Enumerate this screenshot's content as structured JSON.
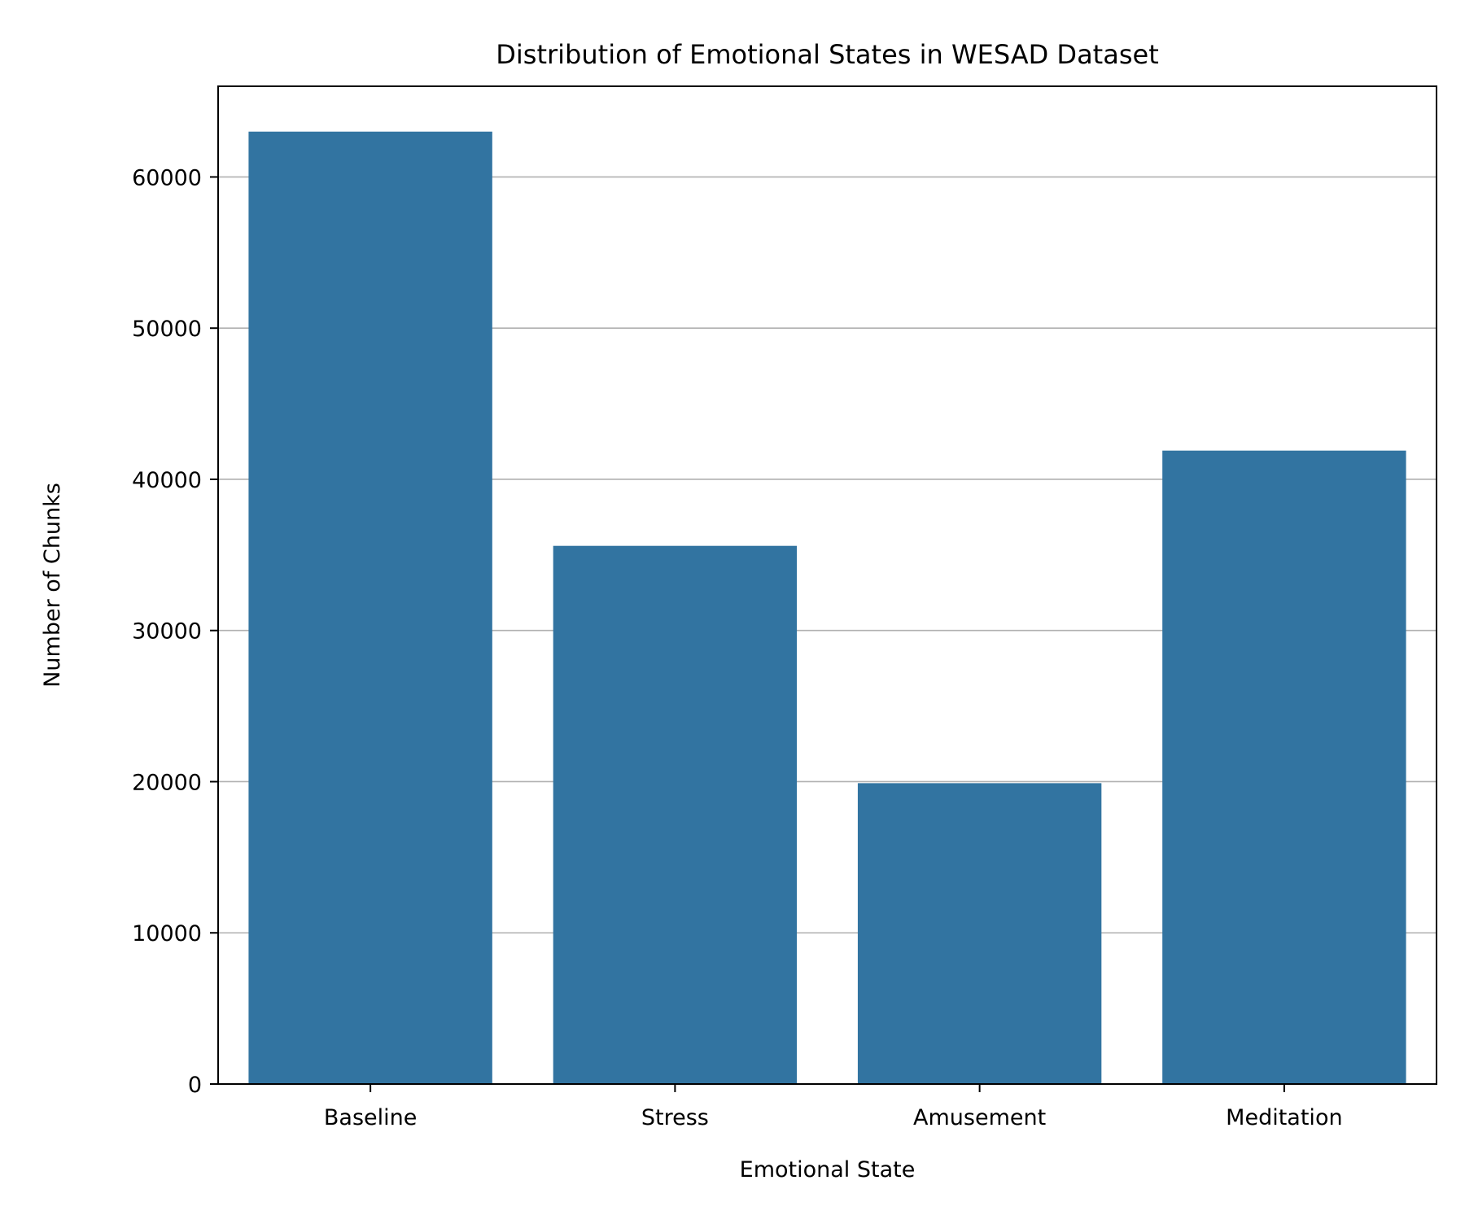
{
  "chart_data": {
    "type": "bar",
    "title": "Distribution of Emotional States in WESAD Dataset",
    "xlabel": "Emotional State",
    "ylabel": "Number of Chunks",
    "categories": [
      "Baseline",
      "Stress",
      "Amusement",
      "Meditation"
    ],
    "values": [
      63000,
      35600,
      19900,
      41900
    ],
    "ylim": [
      0,
      66000
    ],
    "yticks": [
      0,
      10000,
      20000,
      30000,
      40000,
      50000,
      60000
    ],
    "ytick_labels": [
      "0",
      "10000",
      "20000",
      "30000",
      "40000",
      "50000",
      "60000"
    ],
    "grid": {
      "y": true,
      "x": false
    },
    "legend": null,
    "colors": {
      "bar": "#3274a1",
      "grid": "#b0b0b0",
      "axis": "#000000"
    }
  }
}
